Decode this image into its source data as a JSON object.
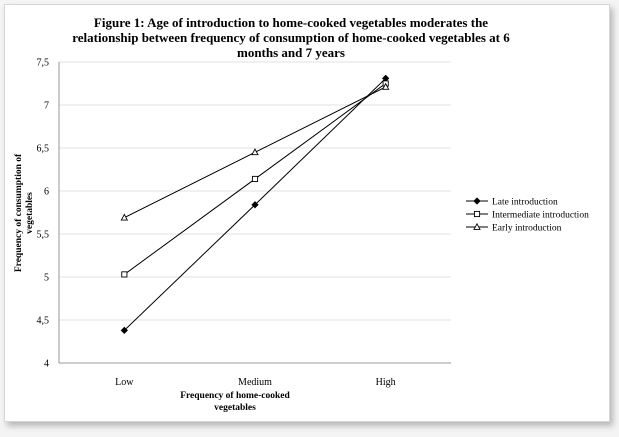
{
  "chart_data": {
    "type": "line",
    "title_lines": [
      "Figure 1: Age of introduction to home-cooked vegetables moderates the",
      "relationship between frequency of consumption of home-cooked  vegetables at 6",
      "months and 7 years"
    ],
    "categories": [
      "Low",
      "Medium",
      "High"
    ],
    "xlabel_lines": [
      "Frequency of home-cooked",
      "vegetables"
    ],
    "ylabel_lines": [
      "Frequency of  consumption of",
      "vegetables"
    ],
    "ylim": [
      4,
      7.5
    ],
    "yticks": [
      "4",
      "4,5",
      "5",
      "5,5",
      "6",
      "6,5",
      "7",
      "7,5"
    ],
    "grid": true,
    "legend_position": "right",
    "series": [
      {
        "name": "Late introduction",
        "marker": "diamond-filled",
        "values": [
          4.38,
          5.84,
          7.31
        ]
      },
      {
        "name": "Intermediate introduction",
        "marker": "square-open",
        "values": [
          5.03,
          6.14,
          7.25
        ]
      },
      {
        "name": "Early introduction",
        "marker": "triangle-open",
        "values": [
          5.69,
          6.45,
          7.21
        ]
      }
    ]
  }
}
